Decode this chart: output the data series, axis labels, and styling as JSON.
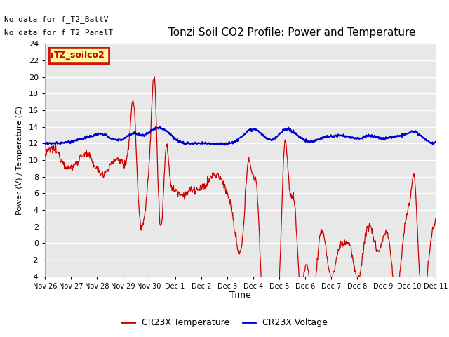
{
  "title": "Tonzi Soil CO2 Profile: Power and Temperature",
  "xlabel": "Time",
  "ylabel": "Power (V) / Temperature (C)",
  "ylim": [
    -4,
    24
  ],
  "yticks": [
    -4,
    -2,
    0,
    2,
    4,
    6,
    8,
    10,
    12,
    14,
    16,
    18,
    20,
    22,
    24
  ],
  "annotation_lines": [
    "No data for f_T2_BattV",
    "No data for f_T2_PanelT"
  ],
  "legend_label": "TZ_soilco2",
  "line1_color": "#cc0000",
  "line1_label": "CR23X Temperature",
  "line2_color": "#0000cc",
  "line2_label": "CR23X Voltage",
  "bg_color": "#ffffff",
  "plot_bg_color": "#e8e8e8",
  "grid_color": "#ffffff",
  "xtick_labels": [
    "Nov 26",
    "Nov 27",
    "Nov 28",
    "Nov 29",
    "Nov 30",
    "Dec 1",
    "Dec 2",
    "Dec 3",
    "Dec 4",
    "Dec 5",
    "Dec 6",
    "Dec 7",
    "Dec 8",
    "Dec 9",
    "Dec 10",
    "Dec 11"
  ],
  "n_points": 800,
  "title_fontsize": 11,
  "annot_fontsize": 8,
  "tick_fontsize": 8,
  "xlabel_fontsize": 9,
  "ylabel_fontsize": 8
}
